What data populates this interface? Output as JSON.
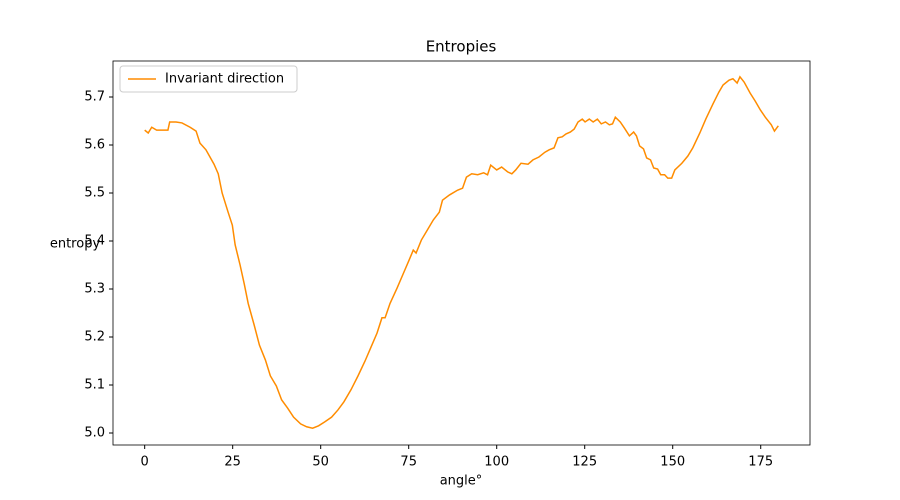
{
  "chart_data": {
    "type": "line",
    "title": "Entropies",
    "xlabel": "angle°",
    "ylabel": "entropy",
    "x": [
      0,
      1,
      2,
      3.4,
      5,
      6.6,
      7.1,
      8.9,
      10.6,
      12.9,
      14.6,
      15.7,
      17.4,
      19.7,
      20.9,
      22,
      23.7,
      24.9,
      25.7,
      27.1,
      28.3,
      29.4,
      31.1,
      32.6,
      34.3,
      35.7,
      37.4,
      38.9,
      40.6,
      42.3,
      44.3,
      46,
      47.7,
      49.4,
      51.1,
      53.1,
      54.9,
      56.6,
      58.6,
      60.6,
      62.6,
      64.3,
      66,
      67.4,
      68.3,
      69.7,
      71.7,
      73.4,
      75.1,
      76.3,
      77.1,
      78.6,
      80.3,
      82,
      83.7,
      84.6,
      86.6,
      88.9,
      90.3,
      91.4,
      92.9,
      94.6,
      96.3,
      97.4,
      98.3,
      100,
      101.4,
      103.1,
      104.3,
      105.4,
      106.9,
      108.9,
      110.3,
      112,
      113.7,
      114.9,
      116.3,
      117.4,
      118.6,
      119.7,
      120.9,
      122,
      123.1,
      124.3,
      125.1,
      126.3,
      127.4,
      128.6,
      129.7,
      130.9,
      132,
      132.9,
      133.7,
      135.1,
      136.3,
      137.7,
      138.9,
      139.7,
      140.6,
      141.7,
      142.6,
      143.7,
      144.6,
      145.7,
      146.6,
      147.7,
      148.6,
      149.7,
      150.6,
      152.6,
      154.3,
      155.7,
      157.7,
      159.4,
      161.4,
      163.1,
      164.3,
      166,
      167.1,
      168.3,
      169.1,
      170.3,
      172,
      173.4,
      174.9,
      176.3,
      178,
      178.9,
      180
    ],
    "series": [
      {
        "name": "Invariant direction",
        "color": "#ff8c00",
        "values": [
          5.631,
          5.625,
          5.637,
          5.631,
          5.631,
          5.631,
          5.648,
          5.648,
          5.646,
          5.637,
          5.629,
          5.604,
          5.59,
          5.56,
          5.54,
          5.5,
          5.46,
          5.433,
          5.392,
          5.35,
          5.31,
          5.27,
          5.225,
          5.183,
          5.152,
          5.119,
          5.098,
          5.069,
          5.052,
          5.033,
          5.019,
          5.013,
          5.01,
          5.015,
          5.023,
          5.033,
          5.048,
          5.065,
          5.09,
          5.119,
          5.15,
          5.179,
          5.208,
          5.24,
          5.24,
          5.27,
          5.302,
          5.331,
          5.36,
          5.381,
          5.375,
          5.402,
          5.423,
          5.444,
          5.46,
          5.485,
          5.496,
          5.506,
          5.51,
          5.533,
          5.54,
          5.538,
          5.542,
          5.538,
          5.558,
          5.548,
          5.554,
          5.544,
          5.54,
          5.548,
          5.562,
          5.56,
          5.569,
          5.575,
          5.585,
          5.59,
          5.594,
          5.615,
          5.617,
          5.623,
          5.627,
          5.633,
          5.648,
          5.654,
          5.648,
          5.654,
          5.648,
          5.654,
          5.644,
          5.648,
          5.642,
          5.644,
          5.658,
          5.648,
          5.635,
          5.619,
          5.627,
          5.619,
          5.598,
          5.592,
          5.573,
          5.569,
          5.552,
          5.55,
          5.538,
          5.538,
          5.531,
          5.531,
          5.548,
          5.562,
          5.577,
          5.594,
          5.625,
          5.654,
          5.685,
          5.71,
          5.725,
          5.735,
          5.738,
          5.729,
          5.742,
          5.731,
          5.708,
          5.692,
          5.673,
          5.658,
          5.642,
          5.629,
          5.64
        ]
      }
    ],
    "xlim": [
      -9,
      189
    ],
    "ylim": [
      4.975,
      5.775
    ],
    "xticks": [
      0,
      25,
      50,
      75,
      100,
      125,
      150,
      175
    ],
    "yticks": [
      {
        "value": 5,
        "label": "5.0"
      },
      5.1,
      5.2,
      5.3,
      5.4,
      5.5,
      5.6,
      5.7
    ],
    "legend": "upper left"
  }
}
